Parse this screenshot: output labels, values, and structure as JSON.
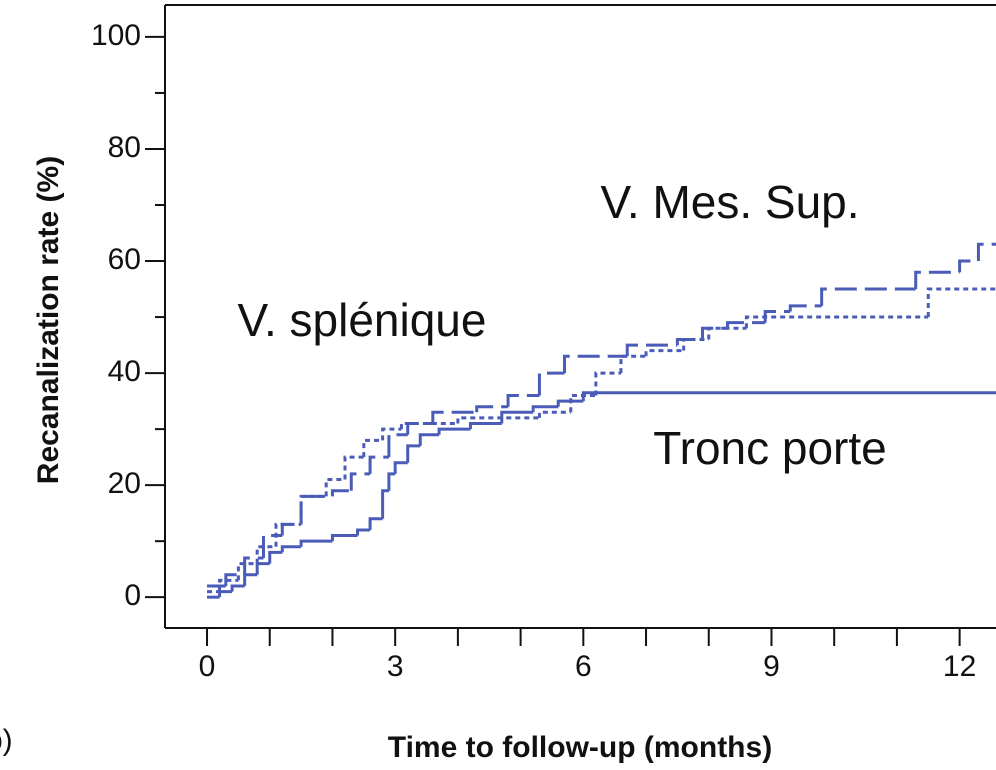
{
  "chart_data": {
    "type": "step",
    "x_label": "Time to follow-up (months)",
    "y_label": "Recanalization rate (%)",
    "panel_label": "b)",
    "xlim": [
      -0.67,
      12.58
    ],
    "ylim": [
      -5.5,
      105.7
    ],
    "xticks": [
      0,
      3,
      6,
      9,
      12
    ],
    "xminorticks": [
      1,
      2,
      4,
      5,
      7,
      8,
      10,
      11
    ],
    "yticks": [
      0,
      20,
      40,
      60,
      80,
      100
    ],
    "yminorticks": [
      10,
      30,
      50,
      70,
      90
    ],
    "series": [
      {
        "name": "Tronc porte",
        "color": "#4a5cb8",
        "dash": "solid",
        "x": [
          0,
          0.2,
          0.4,
          0.6,
          0.8,
          1.0,
          1.2,
          1.5,
          2.0,
          2.4,
          2.6,
          2.8,
          2.9,
          3.0,
          3.2,
          3.4,
          3.7,
          4.2,
          4.7,
          5.2,
          5.6,
          6.0
        ],
        "values": [
          0,
          1,
          2,
          4,
          6,
          8,
          9,
          10,
          11,
          12,
          14,
          19,
          22,
          24,
          27,
          29,
          30,
          31,
          33,
          34,
          35,
          36.5
        ]
      },
      {
        "name": "V. Mes. Sup.",
        "color": "#4a5cb8",
        "dash": "long",
        "x": [
          0,
          0.3,
          0.6,
          0.9,
          1.2,
          1.5,
          2.0,
          2.3,
          2.6,
          2.9,
          3.2,
          3.6,
          4.3,
          4.8,
          5.3,
          5.7,
          6.7,
          7.5,
          7.9,
          8.3,
          8.9,
          9.3,
          9.8,
          11.3,
          12.0,
          12.3
        ],
        "values": [
          2,
          4,
          7,
          11,
          13,
          18,
          19,
          22,
          25,
          29,
          31,
          33,
          34,
          36,
          40,
          43,
          45,
          46,
          48,
          49,
          51,
          52,
          55,
          58,
          60,
          63
        ]
      },
      {
        "name": "V. splénique",
        "color": "#4a5cb8",
        "dash": "dotted",
        "x": [
          0,
          0.2,
          0.5,
          0.8,
          1.1,
          1.5,
          1.9,
          2.2,
          2.5,
          2.8,
          3.1,
          4.0,
          5.3,
          5.8,
          6.2,
          6.6,
          7.0,
          7.6,
          8.0,
          8.6,
          11.5
        ],
        "values": [
          1,
          3,
          6,
          9,
          13,
          18,
          21,
          25,
          28,
          30,
          31,
          32,
          33,
          36,
          40,
          43,
          44,
          46,
          48,
          50,
          55
        ]
      }
    ]
  }
}
